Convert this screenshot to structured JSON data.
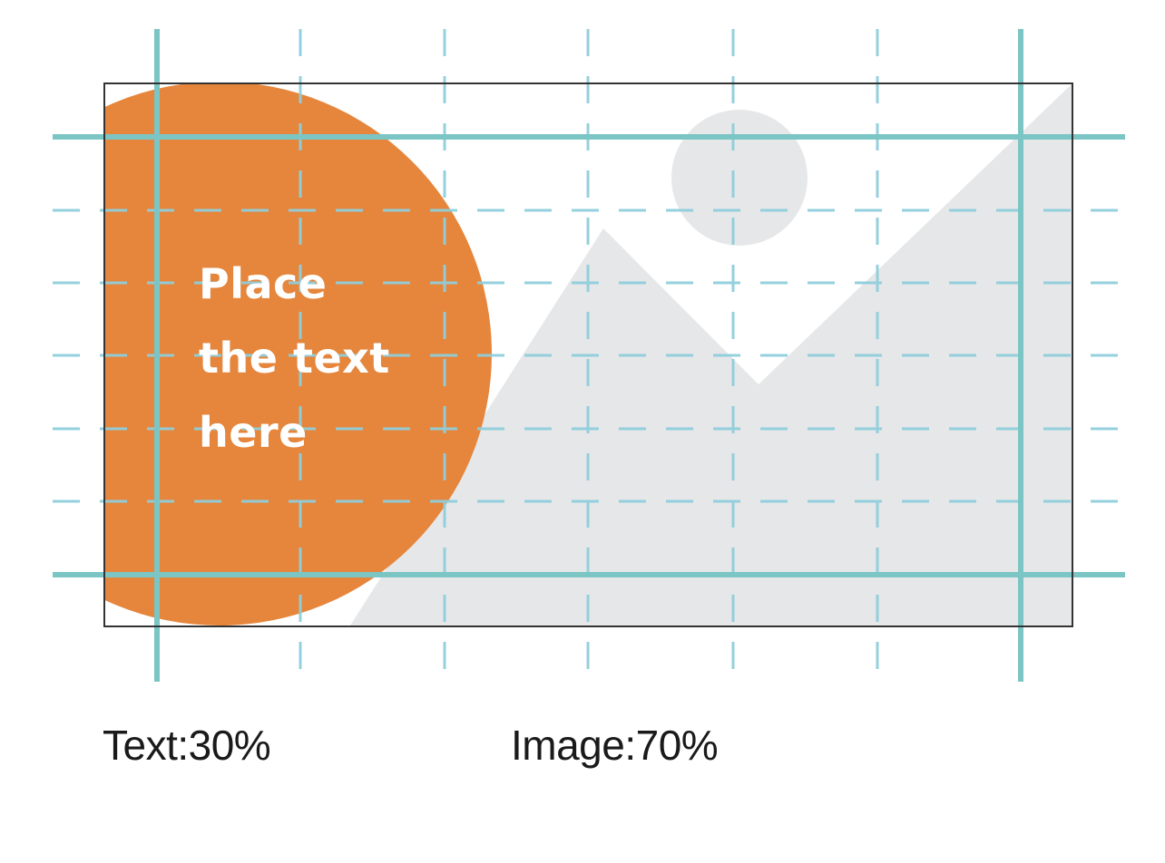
{
  "layout": {
    "placeholder_text": [
      "Place",
      "the text",
      "here"
    ],
    "captions": {
      "text_share": "Text:30%",
      "image_share": "Image:70%"
    },
    "colors": {
      "text_block": "#e5863c",
      "image_placeholder": "#e6e7e8",
      "guide_solid": "#7cc5c5",
      "guide_dashed": "#8fcedc",
      "frame": "#333333"
    },
    "icons": [
      "image-placeholder-icon"
    ]
  }
}
